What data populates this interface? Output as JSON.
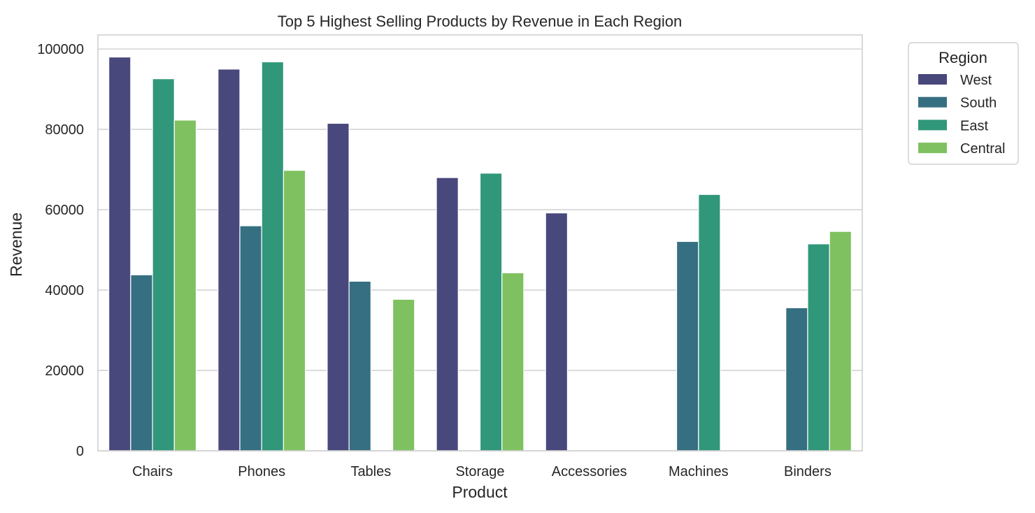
{
  "chart_data": {
    "type": "bar",
    "title": "Top 5 Highest Selling Products by Revenue in Each Region",
    "xlabel": "Product",
    "ylabel": "Revenue",
    "ylim": [
      0,
      103500
    ],
    "yticks": [
      0,
      20000,
      40000,
      60000,
      80000,
      100000
    ],
    "grid": true,
    "legend": {
      "title": "Region",
      "placement": "outside-top-right"
    },
    "categories": [
      "Chairs",
      "Phones",
      "Tables",
      "Storage",
      "Accessories",
      "Machines",
      "Binders"
    ],
    "series": [
      {
        "name": "West",
        "color": "#48487d",
        "values": [
          98000,
          95000,
          81500,
          68000,
          59200,
          null,
          null
        ]
      },
      {
        "name": "South",
        "color": "#366f81",
        "values": [
          43800,
          56000,
          42200,
          null,
          null,
          52100,
          35600
        ]
      },
      {
        "name": "East",
        "color": "#31977a",
        "values": [
          92600,
          96800,
          null,
          69100,
          null,
          63800,
          51500
        ]
      },
      {
        "name": "Central",
        "color": "#7fc160",
        "values": [
          82300,
          69800,
          37700,
          44300,
          null,
          null,
          54600
        ]
      }
    ]
  }
}
